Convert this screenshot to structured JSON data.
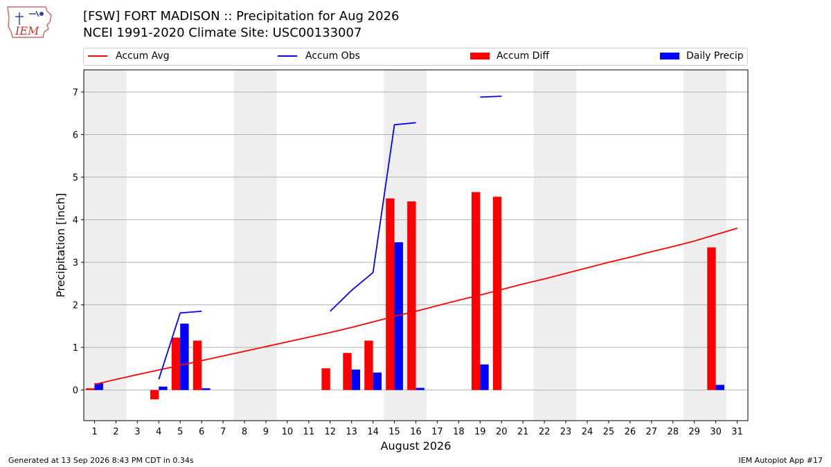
{
  "header": {
    "logo_text": "IEM",
    "title_line1": "[FSW] FORT MADISON :: Precipitation for Aug 2026",
    "title_line2": "NCEI 1991-2020 Climate Site: USC00133007"
  },
  "legend": {
    "accum_avg": "Accum Avg",
    "accum_obs": "Accum Obs",
    "accum_diff": "Accum Diff",
    "daily_precip": "Daily Precip"
  },
  "footer": {
    "generated": "Generated at 13 Sep 2026 8:43 PM CDT in 0.34s",
    "app": "IEM Autoplot App #17"
  },
  "colors": {
    "avg": "#ff0000",
    "obs": "#0000ff",
    "diff": "#ff0000",
    "daily": "#0000ff",
    "weekend_shade": "#eeeeee",
    "grid": "#b0b0b0"
  },
  "chart_data": {
    "type": "bar",
    "title": "[FSW] FORT MADISON :: Precipitation for Aug 2026",
    "xlabel": "August 2026",
    "ylabel": "Precipitation [inch]",
    "xlim": [
      0.5,
      31.5
    ],
    "ylim": [
      -0.72,
      7.52
    ],
    "yticks": [
      0,
      1,
      2,
      3,
      4,
      5,
      6,
      7
    ],
    "x": [
      1,
      2,
      3,
      4,
      5,
      6,
      7,
      8,
      9,
      10,
      11,
      12,
      13,
      14,
      15,
      16,
      17,
      18,
      19,
      20,
      21,
      22,
      23,
      24,
      25,
      26,
      27,
      28,
      29,
      30,
      31
    ],
    "grid": "y",
    "legend_position": "top",
    "weekend_days": [
      1,
      2,
      8,
      9,
      15,
      16,
      22,
      23,
      29,
      30
    ],
    "series": [
      {
        "name": "Accum Avg",
        "kind": "line",
        "values": [
          0.13,
          0.25,
          0.36,
          0.47,
          0.58,
          0.69,
          0.8,
          0.91,
          1.02,
          1.13,
          1.24,
          1.35,
          1.47,
          1.6,
          1.73,
          1.85,
          1.98,
          2.11,
          2.23,
          2.36,
          2.49,
          2.61,
          2.74,
          2.87,
          3.0,
          3.12,
          3.25,
          3.37,
          3.5,
          3.65,
          3.8
        ]
      },
      {
        "name": "Accum Obs",
        "kind": "line",
        "values": [
          null,
          null,
          null,
          0.25,
          1.81,
          1.85,
          null,
          null,
          null,
          null,
          null,
          1.85,
          2.34,
          2.76,
          6.23,
          6.28,
          null,
          null,
          6.88,
          6.9,
          null,
          null,
          null,
          null,
          null,
          null,
          null,
          null,
          null,
          null,
          null
        ]
      },
      {
        "name": "Accum Diff",
        "kind": "bar",
        "values": [
          0.04,
          0,
          0,
          -0.22,
          1.23,
          1.16,
          0,
          0,
          0,
          0,
          0,
          0.51,
          0.87,
          1.16,
          4.5,
          4.43,
          0,
          0,
          4.65,
          4.54,
          0,
          0,
          0,
          0,
          0,
          0,
          0,
          0,
          0,
          3.35,
          0
        ]
      },
      {
        "name": "Daily Precip",
        "kind": "bar",
        "values": [
          0.16,
          0,
          0,
          0.08,
          1.56,
          0.04,
          0,
          0,
          0,
          0,
          0,
          0,
          0.48,
          0.41,
          3.47,
          0.05,
          0,
          0,
          0.6,
          0,
          0,
          0,
          0,
          0,
          0,
          0,
          0,
          0,
          0,
          0.12,
          0
        ]
      }
    ]
  }
}
